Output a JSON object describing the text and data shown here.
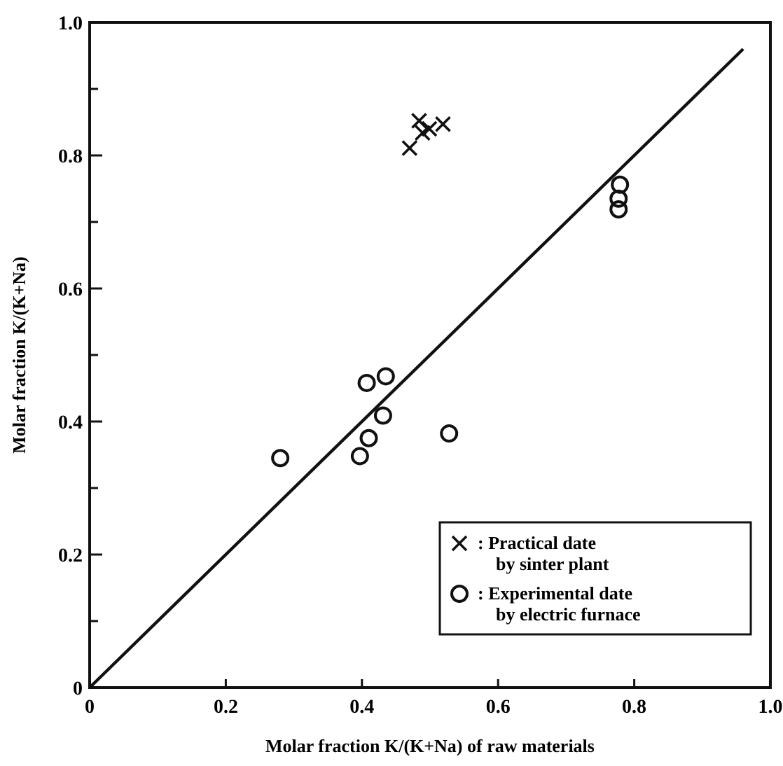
{
  "chart_data": {
    "type": "scatter",
    "xlabel": "Molar fraction K/(K+Na) of raw materials",
    "ylabel": "Molar fraction K/(K+Na)",
    "xlim": [
      0,
      1
    ],
    "ylim": [
      0,
      1
    ],
    "xticks": [
      0,
      0.2,
      0.4,
      0.6,
      0.8,
      {
        "value": 1,
        "label": "1.0"
      }
    ],
    "yticks": [
      0,
      {
        "value": 0.1,
        "label": null
      },
      0.2,
      {
        "value": 0.3,
        "label": null
      },
      0.4,
      {
        "value": 0.5,
        "label": null
      },
      0.6,
      {
        "value": 0.7,
        "label": null
      },
      0.8,
      {
        "value": 0.9,
        "label": null
      },
      {
        "value": 1,
        "label": "1.0"
      }
    ],
    "grid": false,
    "legend": "bottom right",
    "series": [
      {
        "name": ": Practical date by sinter plant",
        "color": "#111111",
        "marker": "cross",
        "x": [
          0.484,
          0.499,
          0.519,
          0.489,
          0.47
        ],
        "values": [
          0.852,
          0.84,
          0.847,
          0.834,
          0.811
        ]
      },
      {
        "name": ": Experimental date by electric furnace",
        "color": "#111111",
        "marker": "circle",
        "x": [
          0.779,
          0.777,
          0.777,
          0.407,
          0.435,
          0.431,
          0.41,
          0.397,
          0.528,
          0.28
        ],
        "values": [
          0.756,
          0.735,
          0.719,
          0.458,
          0.468,
          0.409,
          0.375,
          0.348,
          0.382,
          0.345
        ]
      },
      {
        "type": "line",
        "color": "#111111",
        "line_style": "solid",
        "marker": "none",
        "x": [
          0,
          0.96
        ],
        "values": [
          0,
          0.96
        ]
      }
    ]
  }
}
